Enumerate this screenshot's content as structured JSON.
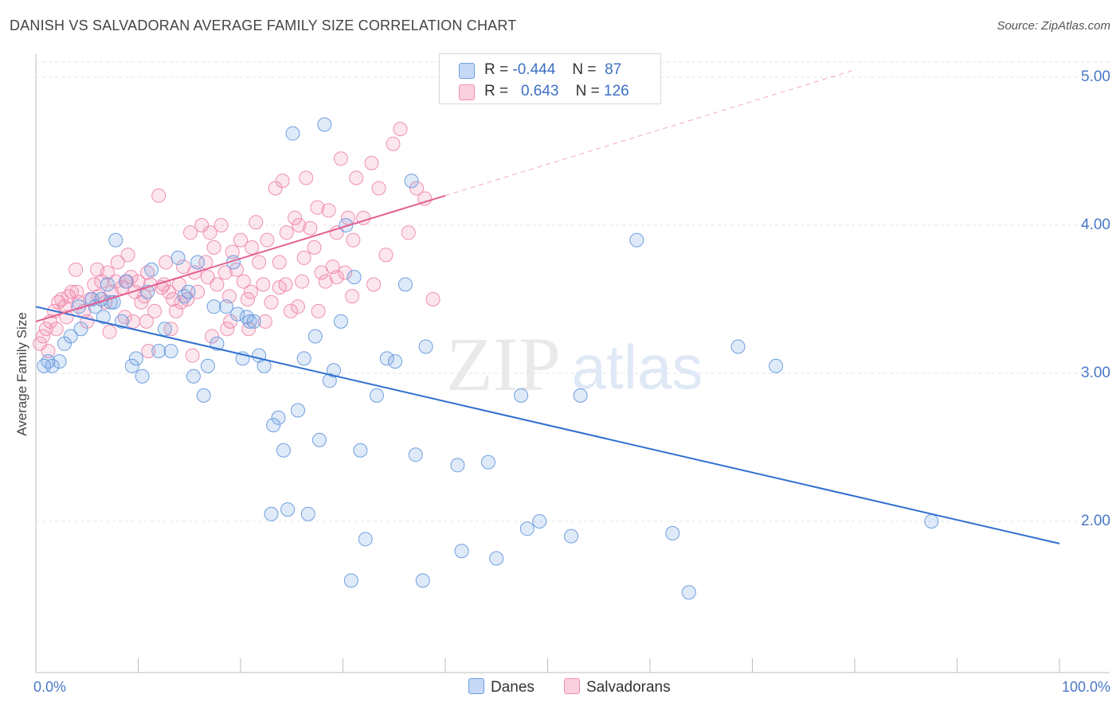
{
  "title": "DANISH VS SALVADORAN AVERAGE FAMILY SIZE CORRELATION CHART",
  "source": "Source: ZipAtlas.com",
  "watermark": {
    "zip": "ZIP",
    "atlas": "atlas"
  },
  "legend": {
    "danes": {
      "r_label": "R =",
      "r_value": "-0.444",
      "n_label": "N =",
      "n_value": "87"
    },
    "salvadorans": {
      "r_label": "R =",
      "r_value": "0.643",
      "n_label": "N =",
      "n_value": "126"
    }
  },
  "chart_data": {
    "type": "scatter",
    "title": "DANISH VS SALVADORAN AVERAGE FAMILY SIZE CORRELATION CHART",
    "xlabel": "",
    "ylabel": "Average Family Size",
    "xlim": [
      0,
      100
    ],
    "ylim": [
      1.0,
      5.1
    ],
    "x_tick_labels": [
      "0.0%",
      "100.0%"
    ],
    "y_ticks": [
      2.0,
      3.0,
      4.0,
      5.0
    ],
    "y_tick_labels": [
      "2.00",
      "3.00",
      "4.00",
      "5.00"
    ],
    "grid": true,
    "legend_position": "bottom-center",
    "series": [
      {
        "name": "Danes",
        "color": "#6f9fe0",
        "line_color": "#2f6fd0",
        "r": -0.444,
        "n": 87,
        "trend": {
          "x": [
            0,
            100
          ],
          "y": [
            3.45,
            1.85
          ]
        },
        "points": [
          [
            0.8,
            3.05
          ],
          [
            1.2,
            3.08
          ],
          [
            1.6,
            3.05
          ],
          [
            2.3,
            3.08
          ],
          [
            2.8,
            3.2
          ],
          [
            3.4,
            3.25
          ],
          [
            4.2,
            3.45
          ],
          [
            4.4,
            3.3
          ],
          [
            5.5,
            3.5
          ],
          [
            5.8,
            3.45
          ],
          [
            6.4,
            3.5
          ],
          [
            6.6,
            3.38
          ],
          [
            7.0,
            3.6
          ],
          [
            7.3,
            3.48
          ],
          [
            7.8,
            3.9
          ],
          [
            8.4,
            3.35
          ],
          [
            8.8,
            3.62
          ],
          [
            9.4,
            3.05
          ],
          [
            9.8,
            3.1
          ],
          [
            10.4,
            2.98
          ],
          [
            10.9,
            3.55
          ],
          [
            11.3,
            3.7
          ],
          [
            12.0,
            3.15
          ],
          [
            12.6,
            3.3
          ],
          [
            13.2,
            3.15
          ],
          [
            13.9,
            3.78
          ],
          [
            14.5,
            3.52
          ],
          [
            14.9,
            3.55
          ],
          [
            15.4,
            2.98
          ],
          [
            15.8,
            3.75
          ],
          [
            16.4,
            2.85
          ],
          [
            16.8,
            3.05
          ],
          [
            17.4,
            3.45
          ],
          [
            17.7,
            3.2
          ],
          [
            18.6,
            3.45
          ],
          [
            19.3,
            3.75
          ],
          [
            19.7,
            3.4
          ],
          [
            20.2,
            3.1
          ],
          [
            20.6,
            3.38
          ],
          [
            21.3,
            3.35
          ],
          [
            21.8,
            3.12
          ],
          [
            22.3,
            3.05
          ],
          [
            23.2,
            2.65
          ],
          [
            23.7,
            2.7
          ],
          [
            24.2,
            2.48
          ],
          [
            25.1,
            4.62
          ],
          [
            25.6,
            2.75
          ],
          [
            26.2,
            3.1
          ],
          [
            26.6,
            2.05
          ],
          [
            27.3,
            3.25
          ],
          [
            27.7,
            2.55
          ],
          [
            28.2,
            4.68
          ],
          [
            28.7,
            2.95
          ],
          [
            29.1,
            3.02
          ],
          [
            29.8,
            3.35
          ],
          [
            30.3,
            4.0
          ],
          [
            31.1,
            3.65
          ],
          [
            31.7,
            2.48
          ],
          [
            32.2,
            1.88
          ],
          [
            33.3,
            2.85
          ],
          [
            34.3,
            3.1
          ],
          [
            35.1,
            3.08
          ],
          [
            36.1,
            3.6
          ],
          [
            36.7,
            4.3
          ],
          [
            37.1,
            2.45
          ],
          [
            37.8,
            1.6
          ],
          [
            38.1,
            3.18
          ],
          [
            41.2,
            2.38
          ],
          [
            41.6,
            1.8
          ],
          [
            44.2,
            2.4
          ],
          [
            45.0,
            1.75
          ],
          [
            47.4,
            2.85
          ],
          [
            48.0,
            1.95
          ],
          [
            49.2,
            2.0
          ],
          [
            52.3,
            1.9
          ],
          [
            53.2,
            2.85
          ],
          [
            58.7,
            3.9
          ],
          [
            62.2,
            1.92
          ],
          [
            63.8,
            1.52
          ],
          [
            68.6,
            3.18
          ],
          [
            72.3,
            3.05
          ],
          [
            87.5,
            2.0
          ],
          [
            23.0,
            2.05
          ],
          [
            24.6,
            2.08
          ],
          [
            30.8,
            1.6
          ],
          [
            20.9,
            3.35
          ],
          [
            7.6,
            3.48
          ]
        ]
      },
      {
        "name": "Salvadorans",
        "color": "#f08fb0",
        "line_color": "#e35f8f",
        "r": 0.643,
        "n": 126,
        "trend": {
          "x": [
            0,
            40
          ],
          "y": [
            3.35,
            4.2
          ]
        },
        "trend_dashed": {
          "x": [
            40,
            80
          ],
          "y": [
            4.2,
            5.05
          ]
        },
        "points": [
          [
            0.4,
            3.2
          ],
          [
            0.7,
            3.25
          ],
          [
            1.0,
            3.3
          ],
          [
            1.4,
            3.35
          ],
          [
            1.8,
            3.42
          ],
          [
            2.2,
            3.48
          ],
          [
            2.5,
            3.5
          ],
          [
            2.8,
            3.45
          ],
          [
            3.2,
            3.52
          ],
          [
            3.5,
            3.55
          ],
          [
            3.9,
            3.7
          ],
          [
            4.2,
            3.48
          ],
          [
            4.7,
            3.42
          ],
          [
            5.0,
            3.35
          ],
          [
            5.3,
            3.5
          ],
          [
            5.7,
            3.6
          ],
          [
            6.1,
            3.52
          ],
          [
            6.4,
            3.62
          ],
          [
            6.8,
            3.48
          ],
          [
            7.0,
            3.68
          ],
          [
            7.4,
            3.55
          ],
          [
            7.8,
            3.62
          ],
          [
            8.0,
            3.75
          ],
          [
            8.4,
            3.58
          ],
          [
            8.7,
            3.38
          ],
          [
            9.0,
            3.8
          ],
          [
            9.3,
            3.65
          ],
          [
            9.7,
            3.55
          ],
          [
            10.0,
            3.62
          ],
          [
            10.3,
            3.48
          ],
          [
            10.6,
            3.52
          ],
          [
            10.9,
            3.68
          ],
          [
            11.2,
            3.6
          ],
          [
            11.6,
            3.42
          ],
          [
            12.0,
            4.2
          ],
          [
            12.3,
            3.58
          ],
          [
            12.7,
            3.75
          ],
          [
            13.0,
            3.55
          ],
          [
            13.4,
            3.5
          ],
          [
            13.7,
            3.42
          ],
          [
            14.0,
            3.6
          ],
          [
            14.4,
            3.72
          ],
          [
            14.8,
            3.5
          ],
          [
            15.1,
            3.95
          ],
          [
            15.5,
            3.68
          ],
          [
            15.8,
            3.55
          ],
          [
            16.2,
            4.0
          ],
          [
            16.6,
            3.75
          ],
          [
            17.0,
            3.95
          ],
          [
            17.4,
            3.85
          ],
          [
            17.7,
            3.6
          ],
          [
            18.1,
            4.0
          ],
          [
            18.5,
            3.68
          ],
          [
            18.9,
            3.52
          ],
          [
            19.2,
            3.82
          ],
          [
            19.6,
            3.7
          ],
          [
            20.0,
            3.9
          ],
          [
            20.3,
            3.62
          ],
          [
            20.7,
            3.5
          ],
          [
            21.1,
            3.85
          ],
          [
            21.5,
            4.02
          ],
          [
            21.8,
            3.75
          ],
          [
            22.2,
            3.6
          ],
          [
            22.6,
            3.9
          ],
          [
            23.0,
            3.48
          ],
          [
            23.4,
            4.25
          ],
          [
            23.8,
            3.58
          ],
          [
            24.1,
            4.3
          ],
          [
            24.5,
            3.95
          ],
          [
            24.9,
            3.42
          ],
          [
            25.3,
            4.05
          ],
          [
            25.7,
            4.0
          ],
          [
            26.0,
            3.62
          ],
          [
            26.4,
            4.32
          ],
          [
            26.8,
            3.98
          ],
          [
            27.2,
            3.85
          ],
          [
            27.5,
            4.12
          ],
          [
            27.9,
            3.68
          ],
          [
            28.3,
            3.62
          ],
          [
            28.6,
            4.1
          ],
          [
            29.0,
            3.72
          ],
          [
            29.4,
            3.95
          ],
          [
            29.8,
            4.45
          ],
          [
            30.2,
            3.68
          ],
          [
            30.5,
            4.05
          ],
          [
            30.9,
            3.52
          ],
          [
            31.3,
            4.32
          ],
          [
            32.0,
            4.05
          ],
          [
            32.8,
            4.42
          ],
          [
            33.5,
            4.25
          ],
          [
            34.2,
            3.8
          ],
          [
            34.9,
            4.55
          ],
          [
            35.6,
            4.65
          ],
          [
            36.4,
            3.95
          ],
          [
            37.2,
            4.25
          ],
          [
            38.0,
            4.18
          ],
          [
            38.8,
            3.5
          ],
          [
            2.0,
            3.3
          ],
          [
            1.2,
            3.15
          ],
          [
            3.0,
            3.38
          ],
          [
            4.0,
            3.55
          ],
          [
            6.0,
            3.7
          ],
          [
            9.5,
            3.35
          ],
          [
            11.0,
            3.15
          ],
          [
            13.2,
            3.3
          ],
          [
            15.3,
            3.12
          ],
          [
            17.2,
            3.25
          ],
          [
            19.0,
            3.35
          ],
          [
            20.8,
            3.3
          ],
          [
            22.4,
            3.35
          ],
          [
            24.4,
            3.6
          ],
          [
            25.6,
            3.45
          ],
          [
            7.2,
            3.28
          ],
          [
            8.9,
            3.62
          ],
          [
            10.8,
            3.35
          ],
          [
            12.5,
            3.6
          ],
          [
            14.2,
            3.48
          ],
          [
            16.8,
            3.65
          ],
          [
            18.7,
            3.3
          ],
          [
            21.0,
            3.55
          ],
          [
            23.8,
            3.75
          ],
          [
            26.2,
            3.78
          ],
          [
            27.6,
            3.42
          ],
          [
            29.4,
            3.65
          ],
          [
            31.0,
            3.9
          ],
          [
            33.0,
            3.6
          ]
        ]
      }
    ]
  },
  "bottom_legend": {
    "danes": "Danes",
    "salvadorans": "Salvadorans"
  }
}
